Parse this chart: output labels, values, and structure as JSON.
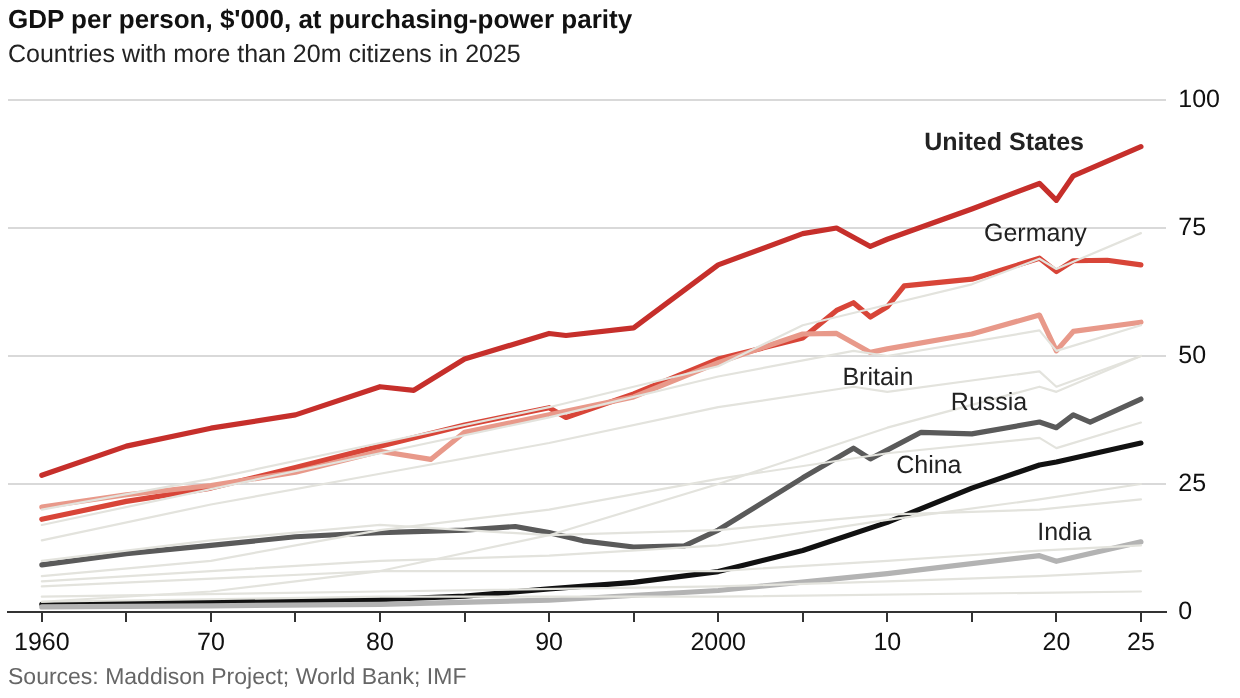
{
  "chart_data": {
    "type": "line",
    "title": "GDP per person, $'000, at purchasing-power parity",
    "subtitle": "Countries with more than 20m citizens in 2025",
    "annotations": [
      "Sources: Maddison Project; World Bank; IMF"
    ],
    "xlim": [
      1958,
      2026.5
    ],
    "ylim": [
      0,
      100
    ],
    "xticks": [
      1960,
      {
        "value": 1965,
        "label": null
      },
      {
        "value": 1970,
        "label": "70"
      },
      {
        "value": 1975,
        "label": null
      },
      {
        "value": 1980,
        "label": "80"
      },
      {
        "value": 1985,
        "label": null
      },
      {
        "value": 1990,
        "label": "90"
      },
      {
        "value": 1995,
        "label": null
      },
      2000,
      {
        "value": 2005,
        "label": null
      },
      {
        "value": 2010,
        "label": "10"
      },
      {
        "value": 2015,
        "label": null
      },
      {
        "value": 2020,
        "label": "20"
      },
      {
        "value": 2025,
        "label": "25"
      }
    ],
    "yticks": [
      0,
      25,
      50,
      75,
      100
    ],
    "grid": "y",
    "legend": false,
    "marker": "none",
    "line_style": "solid",
    "series": [
      {
        "color": "#e3e3dd",
        "x": [
          1960,
          1970,
          1980,
          1990,
          2000,
          2005,
          2010,
          2015,
          2019,
          2020,
          2025
        ],
        "values": [
          20,
          26,
          33,
          40,
          48,
          56,
          60,
          64,
          69,
          67,
          74
        ]
      },
      {
        "color": "#e3e3dd",
        "x": [
          1960,
          1970,
          1980,
          1990,
          2000,
          2008,
          2010,
          2019,
          2020,
          2025
        ],
        "values": [
          17,
          24,
          31,
          38,
          46,
          51,
          50,
          55,
          51,
          56
        ]
      },
      {
        "color": "#e3e3dd",
        "x": [
          1960,
          1970,
          1980,
          1990,
          2000,
          2008,
          2010,
          2019,
          2020,
          2025
        ],
        "values": [
          14,
          21,
          27,
          33,
          40,
          44,
          43,
          47,
          44,
          50
        ]
      },
      {
        "color": "#e3e3dd",
        "x": [
          1960,
          1970,
          1980,
          1990,
          2000,
          2010,
          2019,
          2020,
          2025
        ],
        "values": [
          2,
          4,
          8,
          15,
          25,
          36,
          44,
          43,
          50
        ]
      },
      {
        "color": "#e3e3dd",
        "x": [
          1960,
          1970,
          1980,
          1990,
          2000,
          2010,
          2019,
          2020,
          2025
        ],
        "values": [
          7,
          10,
          16,
          20,
          26,
          31,
          34,
          32,
          37
        ]
      },
      {
        "color": "#e3e3dd",
        "x": [
          1960,
          1970,
          1980,
          1990,
          2000,
          2010,
          2019,
          2025
        ],
        "values": [
          10,
          14,
          17,
          15,
          16,
          19,
          20,
          22
        ]
      },
      {
        "color": "#e3e3dd",
        "x": [
          1960,
          1970,
          1980,
          1990,
          2000,
          2010,
          2019,
          2025
        ],
        "values": [
          6,
          8,
          10,
          11,
          13,
          18,
          22,
          25
        ]
      },
      {
        "color": "#e3e3dd",
        "x": [
          1960,
          1980,
          2000,
          2010,
          2019,
          2025
        ],
        "values": [
          5,
          8,
          8,
          10,
          12,
          13
        ]
      },
      {
        "color": "#e3e3dd",
        "x": [
          1960,
          1980,
          2000,
          2010,
          2019,
          2025
        ],
        "values": [
          3,
          4,
          5,
          6,
          7,
          8
        ]
      },
      {
        "color": "#e3e3dd",
        "x": [
          1960,
          1980,
          2000,
          2025
        ],
        "values": [
          2,
          3,
          3,
          4
        ]
      },
      {
        "name": "India",
        "color": "#b3b3b3",
        "x": [
          1960,
          1970,
          1980,
          1990,
          2000,
          2010,
          2019,
          2020,
          2025
        ],
        "values": [
          1,
          1.2,
          1.5,
          2.3,
          4.2,
          7.5,
          11,
          9.9,
          13.7
        ]
      },
      {
        "name": "China",
        "color": "#111111",
        "x": [
          1960,
          1970,
          1980,
          1985,
          1990,
          1995,
          2000,
          2005,
          2010,
          2015,
          2019,
          2020,
          2025
        ],
        "values": [
          1.5,
          2,
          2.4,
          3.1,
          4.5,
          5.8,
          7.9,
          12,
          17.5,
          24.2,
          28.7,
          29.3,
          33
        ]
      },
      {
        "name": "Russia",
        "color": "#5a5a5a",
        "x": [
          1960,
          1965,
          1970,
          1975,
          1980,
          1985,
          1988,
          1990,
          1992,
          1995,
          1998,
          2000,
          2005,
          2008,
          2009,
          2012,
          2015,
          2019,
          2020,
          2021,
          2022,
          2025
        ],
        "values": [
          9.2,
          11.4,
          13,
          14.7,
          15.5,
          16,
          16.7,
          15.5,
          13.9,
          12.7,
          12.9,
          16,
          26.2,
          32,
          29.9,
          35.1,
          34.8,
          37.1,
          36,
          38.5,
          37.1,
          41.6
        ]
      },
      {
        "name": "Britain",
        "color": "#e8998a",
        "x": [
          1960,
          1965,
          1970,
          1975,
          1980,
          1983,
          1985,
          1990,
          1995,
          2000,
          2005,
          2007,
          2009,
          2010,
          2015,
          2019,
          2020,
          2021,
          2025
        ],
        "values": [
          20.5,
          22.9,
          24.7,
          27.3,
          31.4,
          29.8,
          35.1,
          38.5,
          42,
          48.7,
          54.3,
          54.4,
          50.7,
          51.4,
          54.3,
          58,
          51,
          54.8,
          56.6
        ]
      },
      {
        "name": "Germany",
        "color": "#d84538",
        "x": [
          1960,
          1965,
          1970,
          1975,
          1980,
          1985,
          1990,
          1991,
          1995,
          2000,
          2005,
          2007,
          2008,
          2009,
          2010,
          2011,
          2015,
          2019,
          2020,
          2021,
          2023,
          2025
        ],
        "values": [
          18.1,
          21.6,
          24.2,
          28.2,
          32.4,
          36.5,
          39.9,
          38,
          42.6,
          49.4,
          53.5,
          58.9,
          60.4,
          57.6,
          59.6,
          63.7,
          65,
          69.1,
          66.5,
          68.6,
          68.7,
          67.8
        ]
      },
      {
        "name": "United States",
        "color": "#c62f2b",
        "x": [
          1960,
          1965,
          1970,
          1975,
          1980,
          1982,
          1985,
          1990,
          1991,
          1995,
          2000,
          2005,
          2007,
          2009,
          2010,
          2015,
          2019,
          2020,
          2021,
          2025
        ],
        "values": [
          26.7,
          32.4,
          35.9,
          38.5,
          44,
          43.3,
          49.4,
          54.4,
          54,
          55.5,
          67.8,
          73.9,
          75,
          71.4,
          72.8,
          78.7,
          83.7,
          80.4,
          85.2,
          90.9
        ]
      }
    ]
  }
}
